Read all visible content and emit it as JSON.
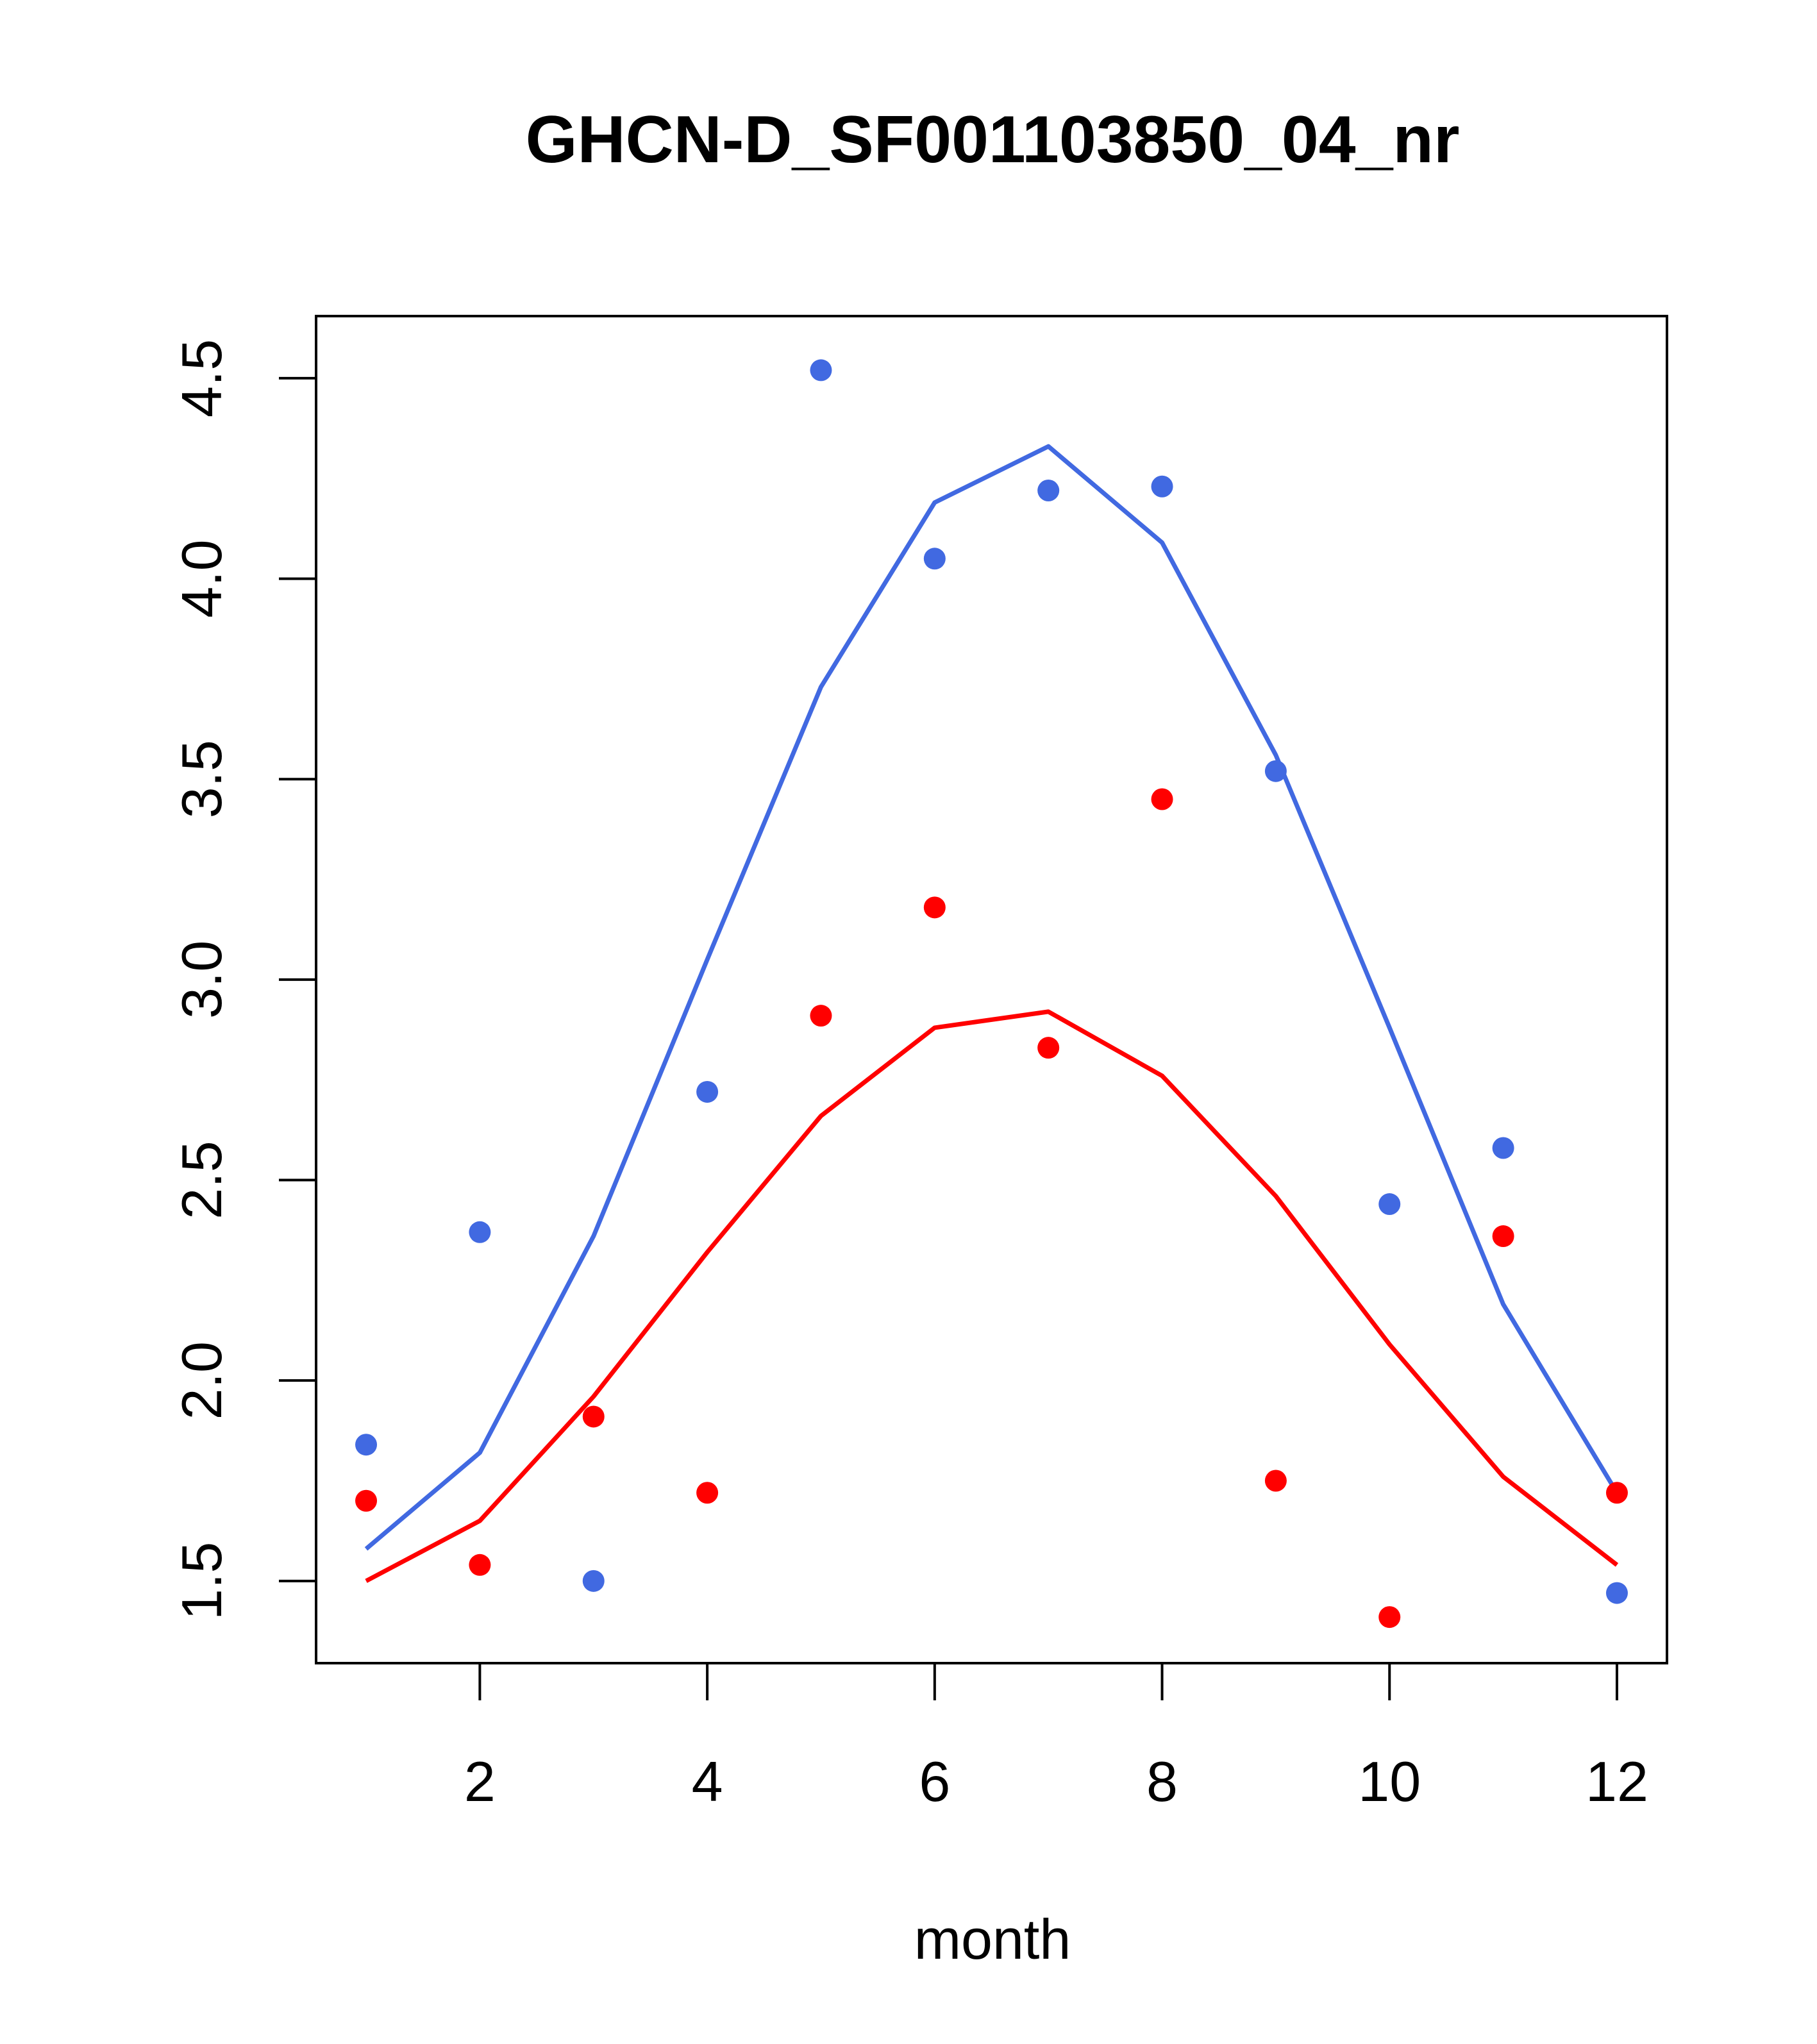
{
  "chart_data": {
    "type": "line",
    "title": "GHCN-D_SF001103850_04_nr",
    "xlabel": "month",
    "ylabel": "",
    "xlim": [
      0.56,
      12.44
    ],
    "ylim": [
      1.295,
      4.655
    ],
    "xticks": [
      2,
      4,
      6,
      8,
      10,
      12
    ],
    "xtick_labels": [
      "2",
      "4",
      "6",
      "8",
      "10",
      "12"
    ],
    "yticks": [
      1.5,
      2.0,
      2.5,
      3.0,
      3.5,
      4.0,
      4.5
    ],
    "ytick_labels": [
      "1.5",
      "2.0",
      "2.5",
      "3.0",
      "3.5",
      "4.0",
      "4.5"
    ],
    "x": [
      1,
      2,
      3,
      4,
      5,
      6,
      7,
      8,
      9,
      10,
      11,
      12
    ],
    "series": [
      {
        "name": "blue",
        "color": "#4169e1",
        "points": [
          1.84,
          2.37,
          1.5,
          2.72,
          4.52,
          4.05,
          4.22,
          4.23,
          3.52,
          2.44,
          2.58,
          1.47
        ],
        "line": [
          1.58,
          1.82,
          2.36,
          3.05,
          3.73,
          4.19,
          4.33,
          4.09,
          3.56,
          2.88,
          2.19,
          1.72
        ]
      },
      {
        "name": "red",
        "color": "#ff0000",
        "points": [
          1.7,
          1.54,
          1.91,
          1.72,
          2.91,
          3.18,
          2.83,
          3.45,
          1.75,
          1.41,
          2.36,
          1.72
        ],
        "line": [
          1.5,
          1.65,
          1.96,
          2.32,
          2.66,
          2.88,
          2.92,
          2.76,
          2.46,
          2.09,
          1.76,
          1.54
        ]
      }
    ]
  }
}
